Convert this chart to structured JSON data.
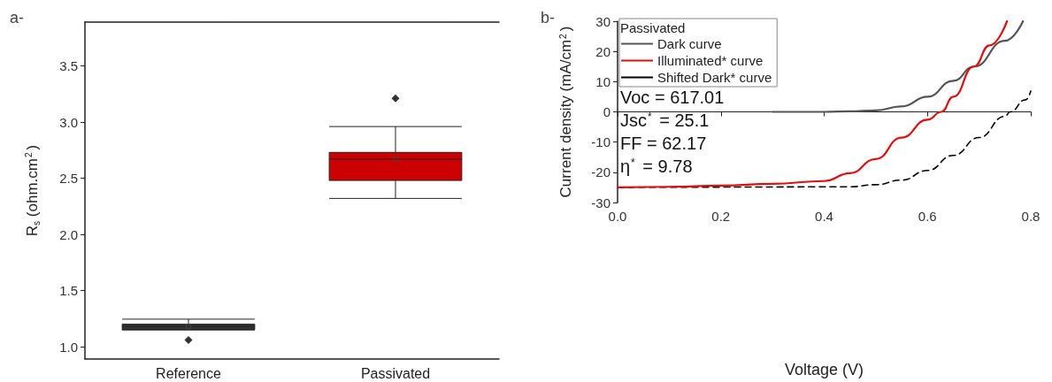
{
  "chart_data": [
    {
      "type": "box",
      "title": "a-",
      "ylabel": "R$_{s}$ (ohm.cm$^{2}$)",
      "categories": [
        "Reference",
        "Passivated"
      ],
      "boxes": [
        {
          "low": 1.15,
          "q1": 1.15,
          "median": 1.18,
          "q3": 1.2,
          "high": 1.245,
          "mean": 1.18,
          "outliers": [
            1.06
          ]
        },
        {
          "low": 2.32,
          "q1": 2.48,
          "median": 2.67,
          "q3": 2.73,
          "high": 2.96,
          "mean": 2.67,
          "outliers": [
            3.21
          ]
        }
      ],
      "colors": [
        "#333333",
        "#cc0000"
      ],
      "ylim": [
        0.89,
        3.89
      ],
      "yticks": [
        {
          "value": 1,
          "label": "1.0"
        },
        {
          "value": 1.5,
          "label": "1.5"
        },
        {
          "value": 2,
          "label": "2.0"
        },
        {
          "value": 2.5,
          "label": "2.5"
        },
        {
          "value": 3,
          "label": "3.0"
        },
        {
          "value": 3.5,
          "label": "3.5"
        }
      ]
    },
    {
      "type": "line",
      "title": "b-",
      "xlabel": "Voltage (V)",
      "ylabel": "Current density (mA/cm$^{2}$)",
      "legend_title": "Passivated",
      "legend": "top left",
      "series": [
        {
          "name": "Dark curve",
          "color": "#555555",
          "line_style": "solid",
          "x": [
            0.3,
            0.4,
            0.45,
            0.5,
            0.55,
            0.6,
            0.65,
            0.69,
            0.75,
            0.785
          ],
          "values": [
            0,
            0,
            0.2,
            0.5,
            1.8,
            5,
            10.3,
            15,
            23.5,
            30
          ]
        },
        {
          "name": "Illuminated* curve",
          "color": "#dd1111",
          "line_style": "solid",
          "x": [
            0,
            0.1,
            0.2,
            0.3,
            0.4,
            0.45,
            0.5,
            0.55,
            0.6,
            0.627,
            0.65,
            0.69,
            0.72,
            0.754
          ],
          "values": [
            -25,
            -24.8,
            -24.4,
            -23.8,
            -22.9,
            -20.3,
            -15.6,
            -8.5,
            -2.6,
            0,
            5,
            15,
            22,
            30
          ]
        },
        {
          "name": "Shifted Dark* curve",
          "color": "#000000",
          "line_style": "dashed",
          "x": [
            0,
            0.2,
            0.45,
            0.5,
            0.55,
            0.6,
            0.65,
            0.7,
            0.75,
            0.76,
            0.79,
            0.8
          ],
          "values": [
            -25,
            -24.9,
            -24.8,
            -24.1,
            -22.6,
            -19.4,
            -14.4,
            -8.5,
            -1.5,
            0,
            4,
            6.9
          ]
        }
      ],
      "annotations": [
        "Voc = 617.01",
        "Jsc$^{*}$ = 25.1",
        "FF = 62.17",
        "η$^{*}$ = 9.78"
      ],
      "xlim": [
        0,
        0.8
      ],
      "xticks": [
        {
          "value": 0,
          "label": "0.0"
        },
        {
          "value": 0.2,
          "label": "0.2"
        },
        {
          "value": 0.4,
          "label": "0.4"
        },
        {
          "value": 0.6,
          "label": "0.6"
        },
        {
          "value": 0.8,
          "label": "0.8"
        }
      ],
      "ylim": [
        -30,
        30
      ],
      "yticks": [
        -30,
        -20,
        -10,
        0,
        10,
        20,
        30
      ]
    }
  ]
}
